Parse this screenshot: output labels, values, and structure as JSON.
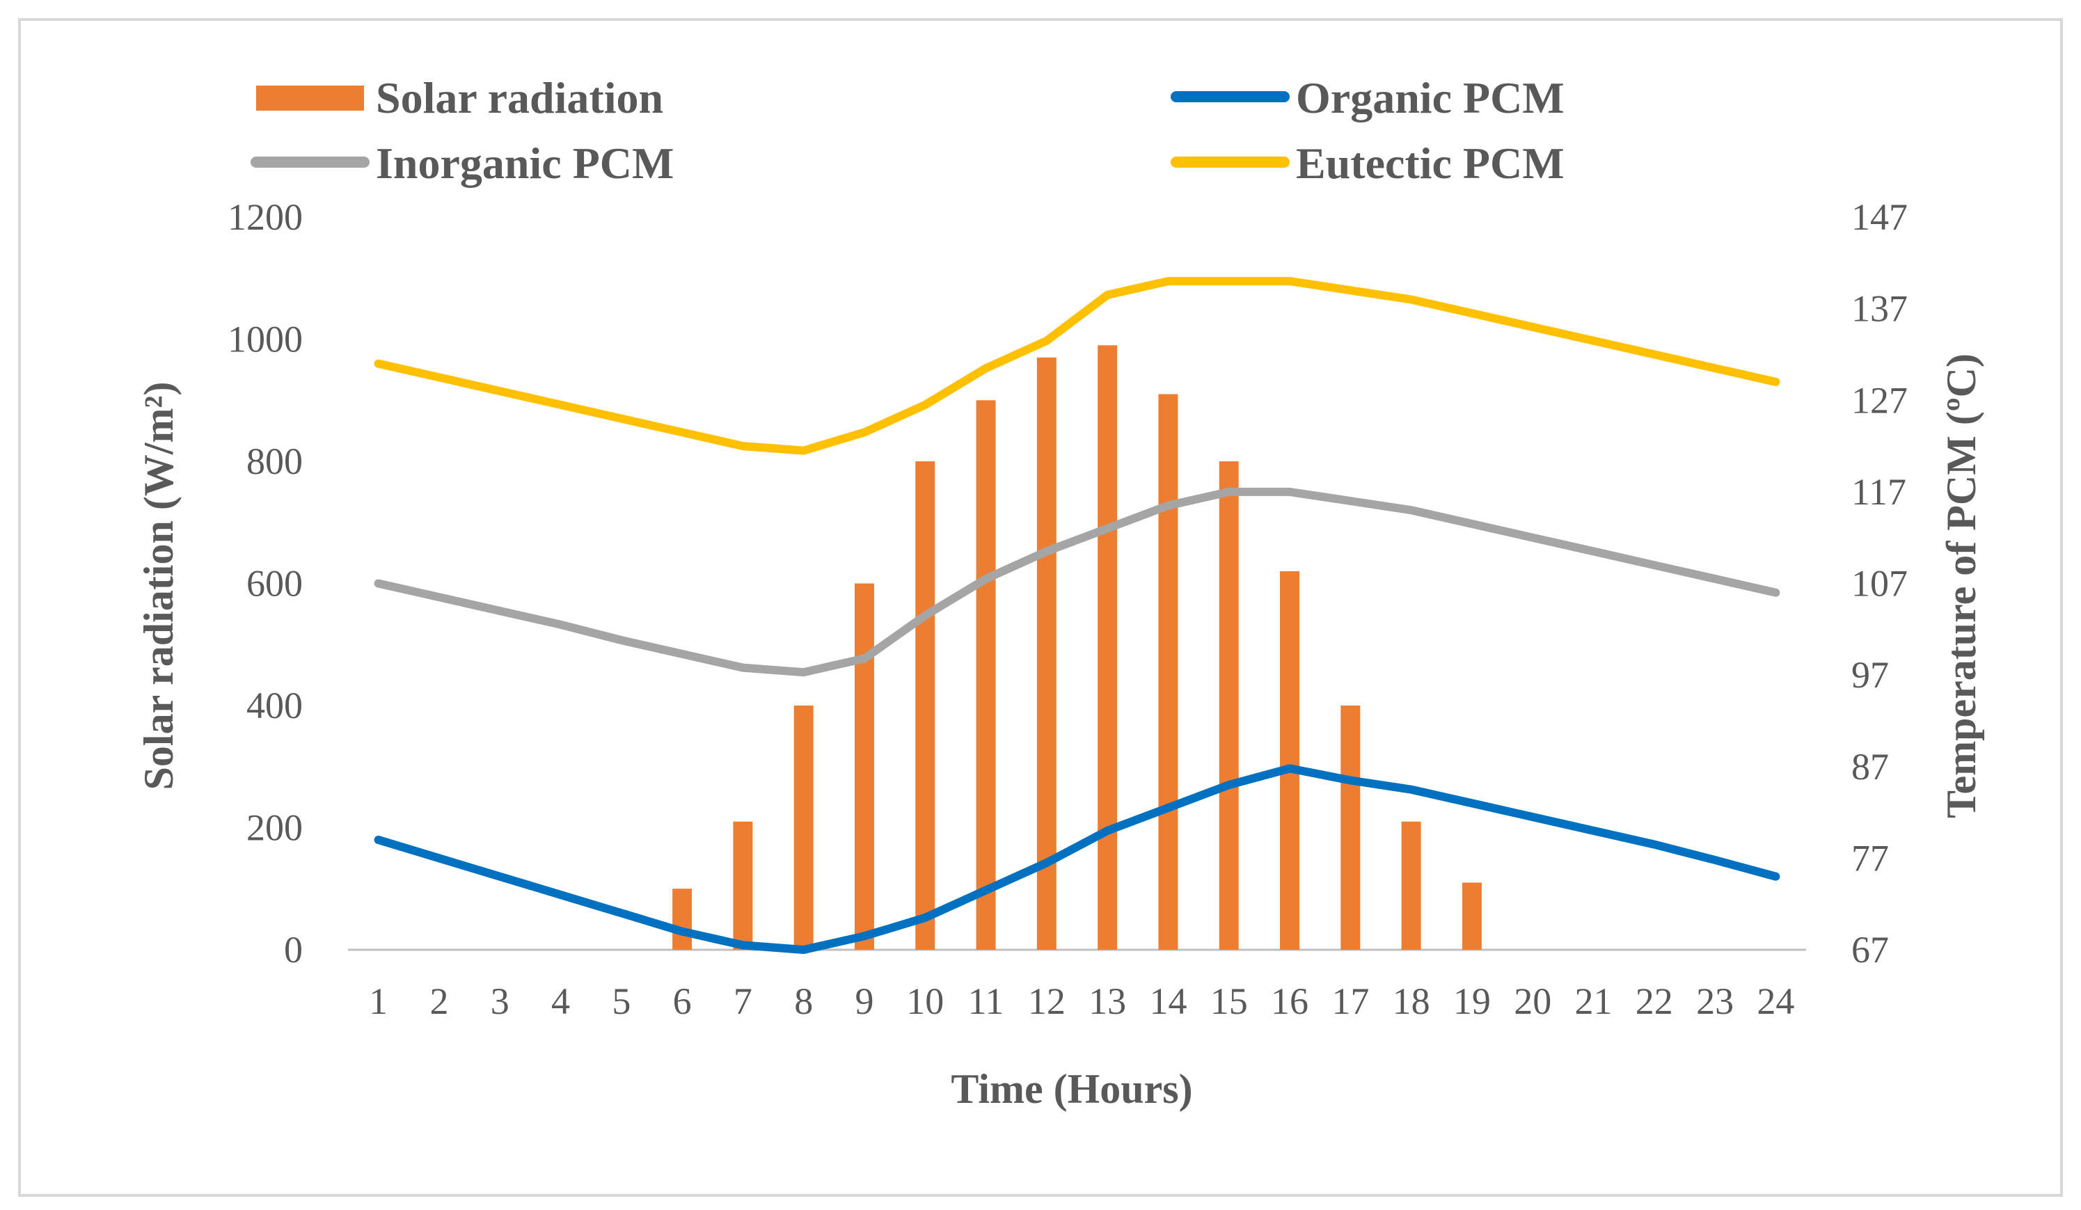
{
  "chart_data": {
    "type": "bar",
    "title": "",
    "xlabel": "Time (Hours)",
    "ylabel": "Solar radiation (W/m²)",
    "y2label": "Temperature of PCM (ºC)",
    "categories": [
      "1",
      "2",
      "3",
      "4",
      "5",
      "6",
      "7",
      "8",
      "9",
      "10",
      "11",
      "12",
      "13",
      "14",
      "15",
      "16",
      "17",
      "18",
      "19",
      "20",
      "21",
      "22",
      "23",
      "24"
    ],
    "ylim": [
      0,
      1200
    ],
    "yticks": [
      "0",
      "200",
      "400",
      "600",
      "800",
      "1000",
      "1200"
    ],
    "y2lim": [
      67,
      147
    ],
    "y2ticks": [
      "67",
      "77",
      "87",
      "97",
      "107",
      "117",
      "127",
      "137",
      "147"
    ],
    "legend_position": "top",
    "series": [
      {
        "name": "Solar radiation",
        "type": "bar",
        "axis": "left",
        "color": "#ED7D31",
        "values": [
          0,
          0,
          0,
          0,
          0,
          100,
          210,
          400,
          600,
          800,
          900,
          970,
          990,
          910,
          800,
          620,
          400,
          210,
          110,
          0,
          0,
          0,
          0,
          0
        ]
      },
      {
        "name": "Organic PCM",
        "type": "line",
        "axis": "right",
        "color": "#0070C0",
        "values": [
          79,
          77,
          75,
          73,
          71,
          69,
          67.5,
          67,
          68.5,
          70.5,
          73.5,
          76.5,
          80,
          82.5,
          85,
          86.8,
          85.5,
          84.5,
          83,
          81.5,
          80,
          78.5,
          76.8,
          75
        ]
      },
      {
        "name": "Inorganic PCM",
        "type": "line",
        "axis": "right",
        "color": "#A5A5A5",
        "values": [
          107,
          105.5,
          104,
          102.5,
          100.8,
          99.3,
          97.8,
          97.3,
          98.8,
          103.5,
          107.5,
          110.5,
          113,
          115.5,
          117,
          117,
          116,
          115,
          113.5,
          112,
          110.5,
          109,
          107.5,
          106
        ]
      },
      {
        "name": "Eutectic PCM",
        "type": "line",
        "axis": "right",
        "color": "#FFC000",
        "values": [
          131,
          129.5,
          128,
          126.5,
          125,
          123.5,
          122,
          121.5,
          123.5,
          126.5,
          130.5,
          133.5,
          138.5,
          140,
          140,
          140,
          139,
          138,
          136.5,
          135,
          133.5,
          132,
          130.5,
          129
        ]
      }
    ]
  }
}
